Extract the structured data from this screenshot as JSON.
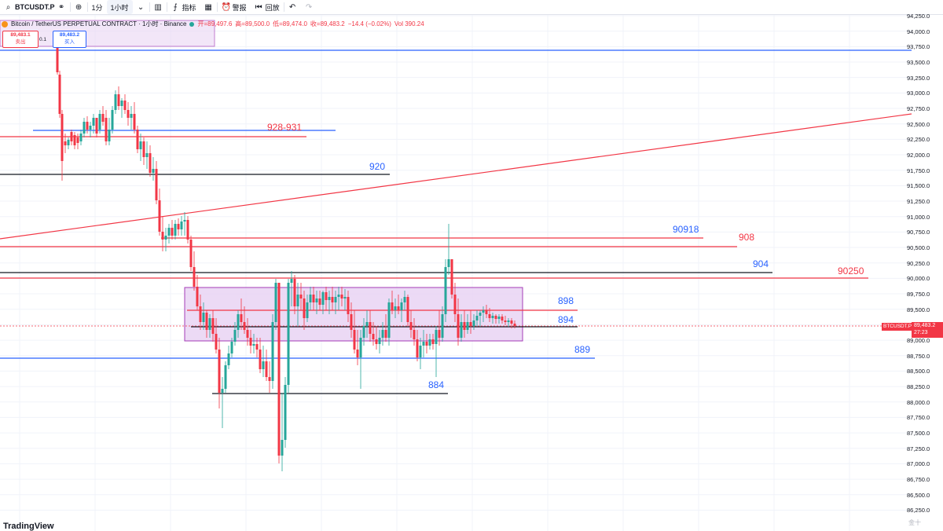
{
  "toolbar": {
    "symbol": "BTCUSDT.P",
    "interval_1m": "1分",
    "interval_1h": "1小时",
    "indicators": "指标",
    "alert": "警报",
    "replay": "回放"
  },
  "legend": {
    "title": "Bitcoin / TetherUS PERPETUAL CONTRACT · 1小时 · Binance",
    "open": "开=89,497.6",
    "high": "高=89,500.0",
    "low": "低=89,474.0",
    "close": "收=89,483.2",
    "change": "−14.4 (−0.02%)",
    "vol": "Vol 390.24"
  },
  "trade": {
    "sell_price": "89,483.1",
    "sell_label": "卖出",
    "qty": "0.1",
    "buy_price": "89,483.2",
    "buy_label": "买入"
  },
  "price_axis": {
    "labels": [
      "94,250.0",
      "94,000.0",
      "93,750.0",
      "93,500.0",
      "93,250.0",
      "93,000.0",
      "92,750.0",
      "92,500.0",
      "92,250.0",
      "92,000.0",
      "91,750.0",
      "91,500.0",
      "91,250.0",
      "91,000.0",
      "90,750.0",
      "90,500.0",
      "90,250.0",
      "90,000.0",
      "89,750.0",
      "89,500.0",
      "89,250.0",
      "89,000.0",
      "88,750.0",
      "88,500.0",
      "88,250.0",
      "88,000.0",
      "87,750.0",
      "87,500.0",
      "87,250.0",
      "87,000.0",
      "86,750.0",
      "86,500.0",
      "86,250.0"
    ],
    "current_symbol": "BTCUSDT.P",
    "current_price": "89,483.2",
    "countdown": "27:23"
  },
  "annotations": [
    {
      "text": "928-931",
      "color": "#f23645"
    },
    {
      "text": "920",
      "color": "#2962ff"
    },
    {
      "text": "90918",
      "color": "#2962ff"
    },
    {
      "text": "908",
      "color": "#f23645"
    },
    {
      "text": "904",
      "color": "#2962ff"
    },
    {
      "text": "90250",
      "color": "#f23645"
    },
    {
      "text": "898",
      "color": "#2962ff"
    },
    {
      "text": "894",
      "color": "#2962ff"
    },
    {
      "text": "889",
      "color": "#2962ff"
    },
    {
      "text": "884",
      "color": "#2962ff"
    }
  ],
  "branding": {
    "logo": "TradingView",
    "watermark": "金十"
  },
  "colors": {
    "up": "#26a69a",
    "down": "#f23645",
    "zone_fill": "#ead6f5",
    "zone_border": "#9c27b0"
  }
}
